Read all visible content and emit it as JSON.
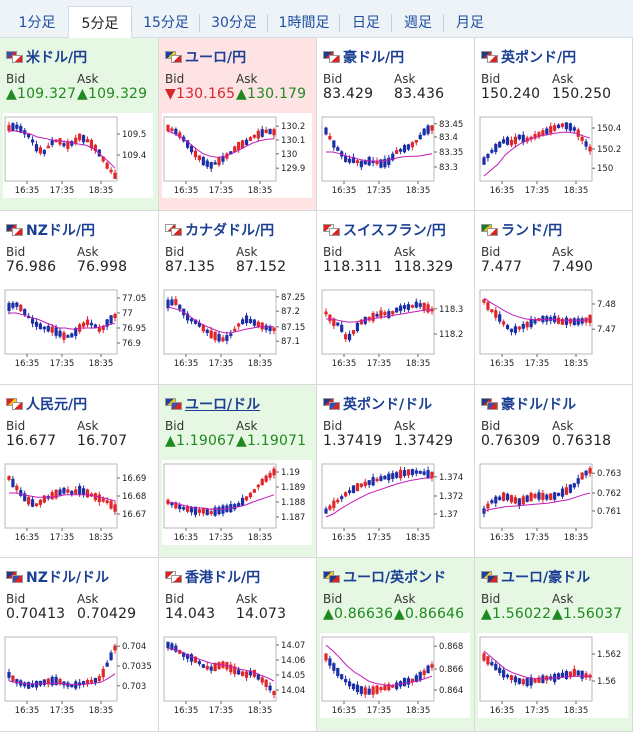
{
  "tabs": [
    {
      "label": "1分足",
      "active": false
    },
    {
      "label": "5分足",
      "active": true
    },
    {
      "label": "15分足",
      "active": false
    },
    {
      "label": "30分足",
      "active": false
    },
    {
      "label": "1時間足",
      "active": false
    },
    {
      "label": "日足",
      "active": false
    },
    {
      "label": "週足",
      "active": false
    },
    {
      "label": "月足",
      "active": false
    }
  ],
  "labels": {
    "bid": "Bid",
    "ask": "Ask"
  },
  "colors": {
    "up_bg": "#e6f8e3",
    "down_bg": "#fde3e3",
    "up_text": "#1f8a1f",
    "down_text": "#d8262c",
    "candle_up": "#e0262b",
    "candle_down": "#1b2fa6",
    "ma_line": "#c21bb8",
    "title": "#1b3f94"
  },
  "x_ticks": [
    "16:35",
    "17:35",
    "18:35"
  ],
  "pairs": [
    {
      "title": "米ドル/円",
      "flag": "us-jp",
      "bid": "▲109.327",
      "ask": "▲109.329",
      "dir": "up",
      "link": false,
      "chart": {
        "yticks": [
          "109.5",
          "109.4"
        ],
        "ytick_pos": [
          0.25,
          0.6
        ],
        "trend": [
          0.15,
          0.12,
          0.2,
          0.3,
          0.5,
          0.55,
          0.4,
          0.35,
          0.45,
          0.4,
          0.3,
          0.35,
          0.45,
          0.6,
          0.8,
          0.95
        ],
        "ma": [
          0.2,
          0.2,
          0.22,
          0.25,
          0.3,
          0.32,
          0.35,
          0.36,
          0.38,
          0.4,
          0.42,
          0.44,
          0.5,
          0.6,
          0.7,
          0.82
        ]
      }
    },
    {
      "title": "ユーロ/円",
      "flag": "eu-jp",
      "bid": "▼130.165",
      "ask": "▲130.179",
      "dir": "down",
      "link": false,
      "chart": {
        "yticks": [
          "130.2",
          "130.1",
          "130",
          "129.9"
        ],
        "ytick_pos": [
          0.12,
          0.35,
          0.58,
          0.82
        ],
        "trend": [
          0.15,
          0.2,
          0.3,
          0.45,
          0.6,
          0.7,
          0.78,
          0.72,
          0.65,
          0.55,
          0.45,
          0.4,
          0.3,
          0.25,
          0.2,
          0.22
        ],
        "ma": [
          0.2,
          0.25,
          0.32,
          0.4,
          0.5,
          0.58,
          0.62,
          0.64,
          0.62,
          0.58,
          0.52,
          0.46,
          0.4,
          0.36,
          0.34,
          0.33
        ]
      }
    },
    {
      "title": "豪ドル/円",
      "flag": "au-jp",
      "bid": "83.429",
      "ask": "83.436",
      "dir": "none",
      "link": false,
      "chart": {
        "yticks": [
          "83.45",
          "83.4",
          "83.35",
          "83.3"
        ],
        "ytick_pos": [
          0.08,
          0.3,
          0.55,
          0.8
        ],
        "trend": [
          0.2,
          0.4,
          0.55,
          0.7,
          0.68,
          0.75,
          0.7,
          0.72,
          0.75,
          0.7,
          0.55,
          0.5,
          0.45,
          0.35,
          0.2,
          0.15
        ],
        "ma": [
          0.55,
          0.55,
          0.58,
          0.62,
          0.65,
          0.68,
          0.7,
          0.7,
          0.7,
          0.68,
          0.65,
          0.63,
          0.62,
          0.62,
          0.6,
          0.58
        ]
      }
    },
    {
      "title": "英ポンド/円",
      "flag": "gb-jp",
      "bid": "150.240",
      "ask": "150.250",
      "dir": "none",
      "link": false,
      "chart": {
        "yticks": [
          "150.4",
          "150.2",
          "150"
        ],
        "ytick_pos": [
          0.15,
          0.5,
          0.82
        ],
        "trend": [
          0.7,
          0.55,
          0.45,
          0.35,
          0.4,
          0.3,
          0.35,
          0.3,
          0.25,
          0.2,
          0.15,
          0.1,
          0.12,
          0.18,
          0.35,
          0.5
        ],
        "ma": [
          0.95,
          0.85,
          0.75,
          0.6,
          0.5,
          0.42,
          0.36,
          0.32,
          0.28,
          0.26,
          0.24,
          0.22,
          0.22,
          0.24,
          0.28,
          0.32
        ]
      }
    },
    {
      "title": "NZドル/円",
      "flag": "nz-jp",
      "bid": "76.986",
      "ask": "76.998",
      "dir": "none",
      "link": false,
      "chart": {
        "yticks": [
          "77.05",
          "77",
          "76.95",
          "76.9"
        ],
        "ytick_pos": [
          0.1,
          0.35,
          0.6,
          0.85
        ],
        "trend": [
          0.25,
          0.2,
          0.3,
          0.45,
          0.55,
          0.6,
          0.62,
          0.68,
          0.75,
          0.72,
          0.6,
          0.5,
          0.55,
          0.65,
          0.5,
          0.4
        ],
        "ma": [
          0.35,
          0.35,
          0.38,
          0.42,
          0.45,
          0.5,
          0.55,
          0.6,
          0.6,
          0.62,
          0.6,
          0.6,
          0.6,
          0.58,
          0.55,
          0.52
        ]
      }
    },
    {
      "title": "カナダドル/円",
      "flag": "ca-jp",
      "bid": "87.135",
      "ask": "87.152",
      "dir": "none",
      "link": false,
      "chart": {
        "yticks": [
          "87.25",
          "87.2",
          "87.15",
          "87.1"
        ],
        "ytick_pos": [
          0.08,
          0.32,
          0.58,
          0.82
        ],
        "trend": [
          0.2,
          0.15,
          0.3,
          0.45,
          0.5,
          0.6,
          0.7,
          0.75,
          0.8,
          0.7,
          0.55,
          0.45,
          0.5,
          0.55,
          0.6,
          0.62
        ],
        "ma": [
          0.25,
          0.28,
          0.32,
          0.4,
          0.48,
          0.55,
          0.6,
          0.65,
          0.68,
          0.68,
          0.65,
          0.62,
          0.6,
          0.58,
          0.58,
          0.58
        ]
      }
    },
    {
      "title": "スイスフラン/円",
      "flag": "ch-jp",
      "bid": "118.311",
      "ask": "118.329",
      "dir": "none",
      "link": false,
      "chart": {
        "yticks": [
          "118.3",
          "118.2"
        ],
        "ytick_pos": [
          0.28,
          0.7
        ],
        "trend": [
          0.35,
          0.5,
          0.55,
          0.8,
          0.65,
          0.5,
          0.45,
          0.4,
          0.35,
          0.38,
          0.3,
          0.25,
          0.25,
          0.2,
          0.25,
          0.3
        ],
        "ma": [
          0.45,
          0.45,
          0.48,
          0.5,
          0.5,
          0.48,
          0.46,
          0.44,
          0.42,
          0.4,
          0.38,
          0.36,
          0.34,
          0.32,
          0.3,
          0.3
        ]
      }
    },
    {
      "title": "ランド/円",
      "flag": "za-jp",
      "bid": "7.477",
      "ask": "7.490",
      "dir": "none",
      "link": false,
      "chart": {
        "yticks": [
          "7.48",
          "7.47"
        ],
        "ytick_pos": [
          0.2,
          0.62
        ],
        "trend": [
          0.15,
          0.3,
          0.4,
          0.55,
          0.65,
          0.6,
          0.55,
          0.5,
          0.45,
          0.45,
          0.45,
          0.5,
          0.48,
          0.5,
          0.48,
          0.45
        ],
        "ma": [
          0.1,
          0.18,
          0.25,
          0.32,
          0.38,
          0.42,
          0.45,
          0.46,
          0.46,
          0.46,
          0.46,
          0.47,
          0.47,
          0.47,
          0.47,
          0.46
        ]
      }
    },
    {
      "title": "人民元/円",
      "flag": "cn-jp",
      "bid": "16.677",
      "ask": "16.707",
      "dir": "none",
      "link": false,
      "chart": {
        "yticks": [
          "16.69",
          "16.68",
          "16.67"
        ],
        "ytick_pos": [
          0.2,
          0.5,
          0.8
        ],
        "trend": [
          0.2,
          0.35,
          0.5,
          0.6,
          0.65,
          0.55,
          0.5,
          0.45,
          0.4,
          0.45,
          0.4,
          0.45,
          0.5,
          0.55,
          0.6,
          0.7
        ],
        "ma": [
          0.45,
          0.45,
          0.48,
          0.5,
          0.52,
          0.52,
          0.52,
          0.5,
          0.48,
          0.48,
          0.48,
          0.48,
          0.5,
          0.52,
          0.55,
          0.58
        ]
      }
    },
    {
      "title": "ユーロ/ドル",
      "flag": "eu-us",
      "bid": "▲1.19067",
      "ask": "▲1.19071",
      "dir": "up",
      "link": true,
      "chart": {
        "yticks": [
          "1.19",
          "1.189",
          "1.188",
          "1.187"
        ],
        "ytick_pos": [
          0.1,
          0.35,
          0.6,
          0.85
        ],
        "trend": [
          0.6,
          0.65,
          0.7,
          0.72,
          0.75,
          0.75,
          0.78,
          0.75,
          0.72,
          0.7,
          0.65,
          0.55,
          0.45,
          0.3,
          0.2,
          0.1
        ],
        "ma": [
          0.6,
          0.62,
          0.65,
          0.68,
          0.7,
          0.7,
          0.72,
          0.72,
          0.72,
          0.7,
          0.68,
          0.65,
          0.6,
          0.56,
          0.52,
          0.48
        ]
      }
    },
    {
      "title": "英ポンド/ドル",
      "flag": "gb-us",
      "bid": "1.37419",
      "ask": "1.37429",
      "dir": "none",
      "link": false,
      "chart": {
        "yticks": [
          "1.374",
          "1.372",
          "1.37"
        ],
        "ytick_pos": [
          0.18,
          0.5,
          0.8
        ],
        "trend": [
          0.75,
          0.65,
          0.55,
          0.45,
          0.38,
          0.32,
          0.28,
          0.24,
          0.2,
          0.18,
          0.15,
          0.12,
          0.1,
          0.1,
          0.12,
          0.15
        ],
        "ma": [
          0.85,
          0.8,
          0.72,
          0.65,
          0.58,
          0.52,
          0.46,
          0.42,
          0.38,
          0.34,
          0.3,
          0.27,
          0.24,
          0.22,
          0.2,
          0.2
        ]
      }
    },
    {
      "title": "豪ドル/ドル",
      "flag": "au-us",
      "bid": "0.76309",
      "ask": "0.76318",
      "dir": "none",
      "link": false,
      "chart": {
        "yticks": [
          "0.763",
          "0.762",
          "0.761"
        ],
        "ytick_pos": [
          0.12,
          0.45,
          0.75
        ],
        "trend": [
          0.75,
          0.6,
          0.55,
          0.5,
          0.55,
          0.6,
          0.55,
          0.5,
          0.5,
          0.52,
          0.5,
          0.45,
          0.4,
          0.3,
          0.15,
          0.08
        ],
        "ma": [
          0.75,
          0.72,
          0.7,
          0.68,
          0.67,
          0.66,
          0.65,
          0.64,
          0.63,
          0.62,
          0.6,
          0.58,
          0.56,
          0.52,
          0.48,
          0.45
        ]
      }
    },
    {
      "title": "NZドル/ドル",
      "flag": "nz-us",
      "bid": "0.70413",
      "ask": "0.70429",
      "dir": "none",
      "link": false,
      "chart": {
        "yticks": [
          "0.704",
          "0.7035",
          "0.703"
        ],
        "ytick_pos": [
          0.12,
          0.45,
          0.78
        ],
        "trend": [
          0.6,
          0.7,
          0.75,
          0.78,
          0.75,
          0.72,
          0.7,
          0.7,
          0.75,
          0.78,
          0.75,
          0.72,
          0.7,
          0.65,
          0.4,
          0.15
        ],
        "ma": [
          0.7,
          0.72,
          0.74,
          0.75,
          0.75,
          0.74,
          0.74,
          0.74,
          0.75,
          0.76,
          0.76,
          0.75,
          0.74,
          0.72,
          0.66,
          0.58
        ]
      }
    },
    {
      "title": "香港ドル/円",
      "flag": "hk-jp",
      "bid": "14.043",
      "ask": "14.073",
      "dir": "none",
      "link": false,
      "chart": {
        "yticks": [
          "14.07",
          "14.06",
          "14.05",
          "14.04"
        ],
        "ytick_pos": [
          0.1,
          0.35,
          0.6,
          0.85
        ],
        "trend": [
          0.1,
          0.15,
          0.25,
          0.3,
          0.35,
          0.45,
          0.5,
          0.45,
          0.42,
          0.5,
          0.55,
          0.6,
          0.55,
          0.65,
          0.75,
          0.9
        ],
        "ma": [
          0.15,
          0.18,
          0.22,
          0.28,
          0.32,
          0.36,
          0.4,
          0.42,
          0.44,
          0.46,
          0.5,
          0.52,
          0.55,
          0.6,
          0.64,
          0.7
        ]
      }
    },
    {
      "title": "ユーロ/英ポンド",
      "flag": "eu-gb",
      "bid": "▲0.86636",
      "ask": "▲0.86646",
      "dir": "up",
      "link": false,
      "chart": {
        "yticks": [
          "0.868",
          "0.866",
          "0.864"
        ],
        "ytick_pos": [
          0.12,
          0.5,
          0.85
        ],
        "trend": [
          0.3,
          0.45,
          0.6,
          0.72,
          0.8,
          0.85,
          0.88,
          0.85,
          0.82,
          0.8,
          0.78,
          0.72,
          0.7,
          0.65,
          0.55,
          0.45
        ],
        "ma": [
          0.1,
          0.2,
          0.32,
          0.45,
          0.55,
          0.62,
          0.7,
          0.74,
          0.76,
          0.78,
          0.76,
          0.74,
          0.72,
          0.7,
          0.66,
          0.62
        ]
      }
    },
    {
      "title": "ユーロ/豪ドル",
      "flag": "eu-au",
      "bid": "▲1.56022",
      "ask": "▲1.56037",
      "dir": "up",
      "link": false,
      "chart": {
        "yticks": [
          "1.562",
          "1.56"
        ],
        "ytick_pos": [
          0.25,
          0.7
        ],
        "trend": [
          0.3,
          0.4,
          0.5,
          0.6,
          0.65,
          0.7,
          0.72,
          0.7,
          0.68,
          0.65,
          0.65,
          0.6,
          0.6,
          0.55,
          0.6,
          0.62
        ],
        "ma": [
          0.2,
          0.3,
          0.4,
          0.5,
          0.56,
          0.6,
          0.64,
          0.66,
          0.66,
          0.66,
          0.65,
          0.64,
          0.63,
          0.62,
          0.62,
          0.62
        ]
      }
    }
  ]
}
